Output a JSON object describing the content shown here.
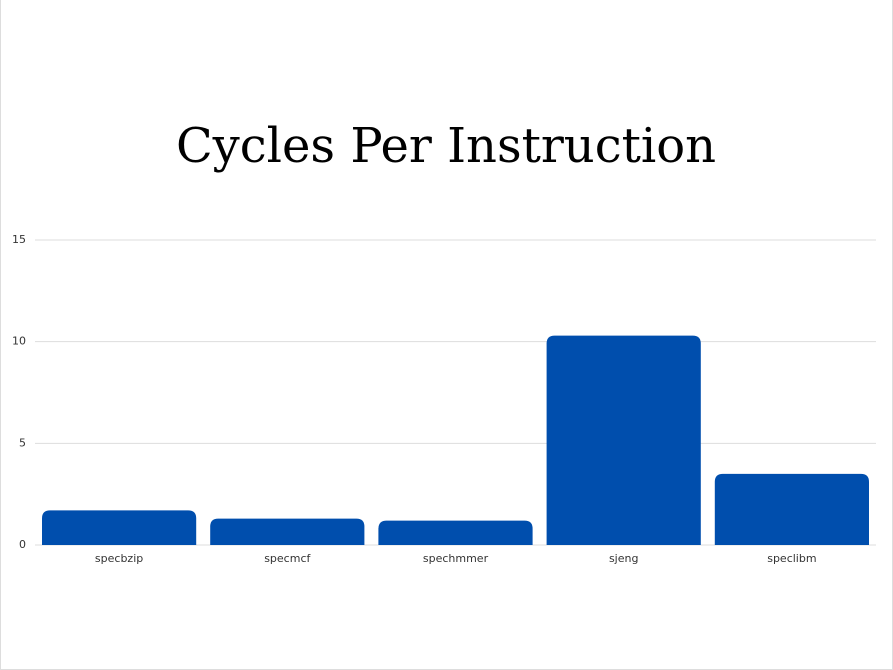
{
  "chart_data": {
    "type": "bar",
    "title": "Cycles Per Instruction",
    "categories": [
      "specbzip",
      "specmcf",
      "spechmmer",
      "sjeng",
      "speclibm"
    ],
    "values": [
      1.7,
      1.3,
      1.2,
      10.3,
      3.5
    ],
    "color": "#004ead",
    "ylim": [
      0,
      15
    ],
    "yticks": [
      0,
      5,
      10,
      15
    ],
    "grid": true
  }
}
